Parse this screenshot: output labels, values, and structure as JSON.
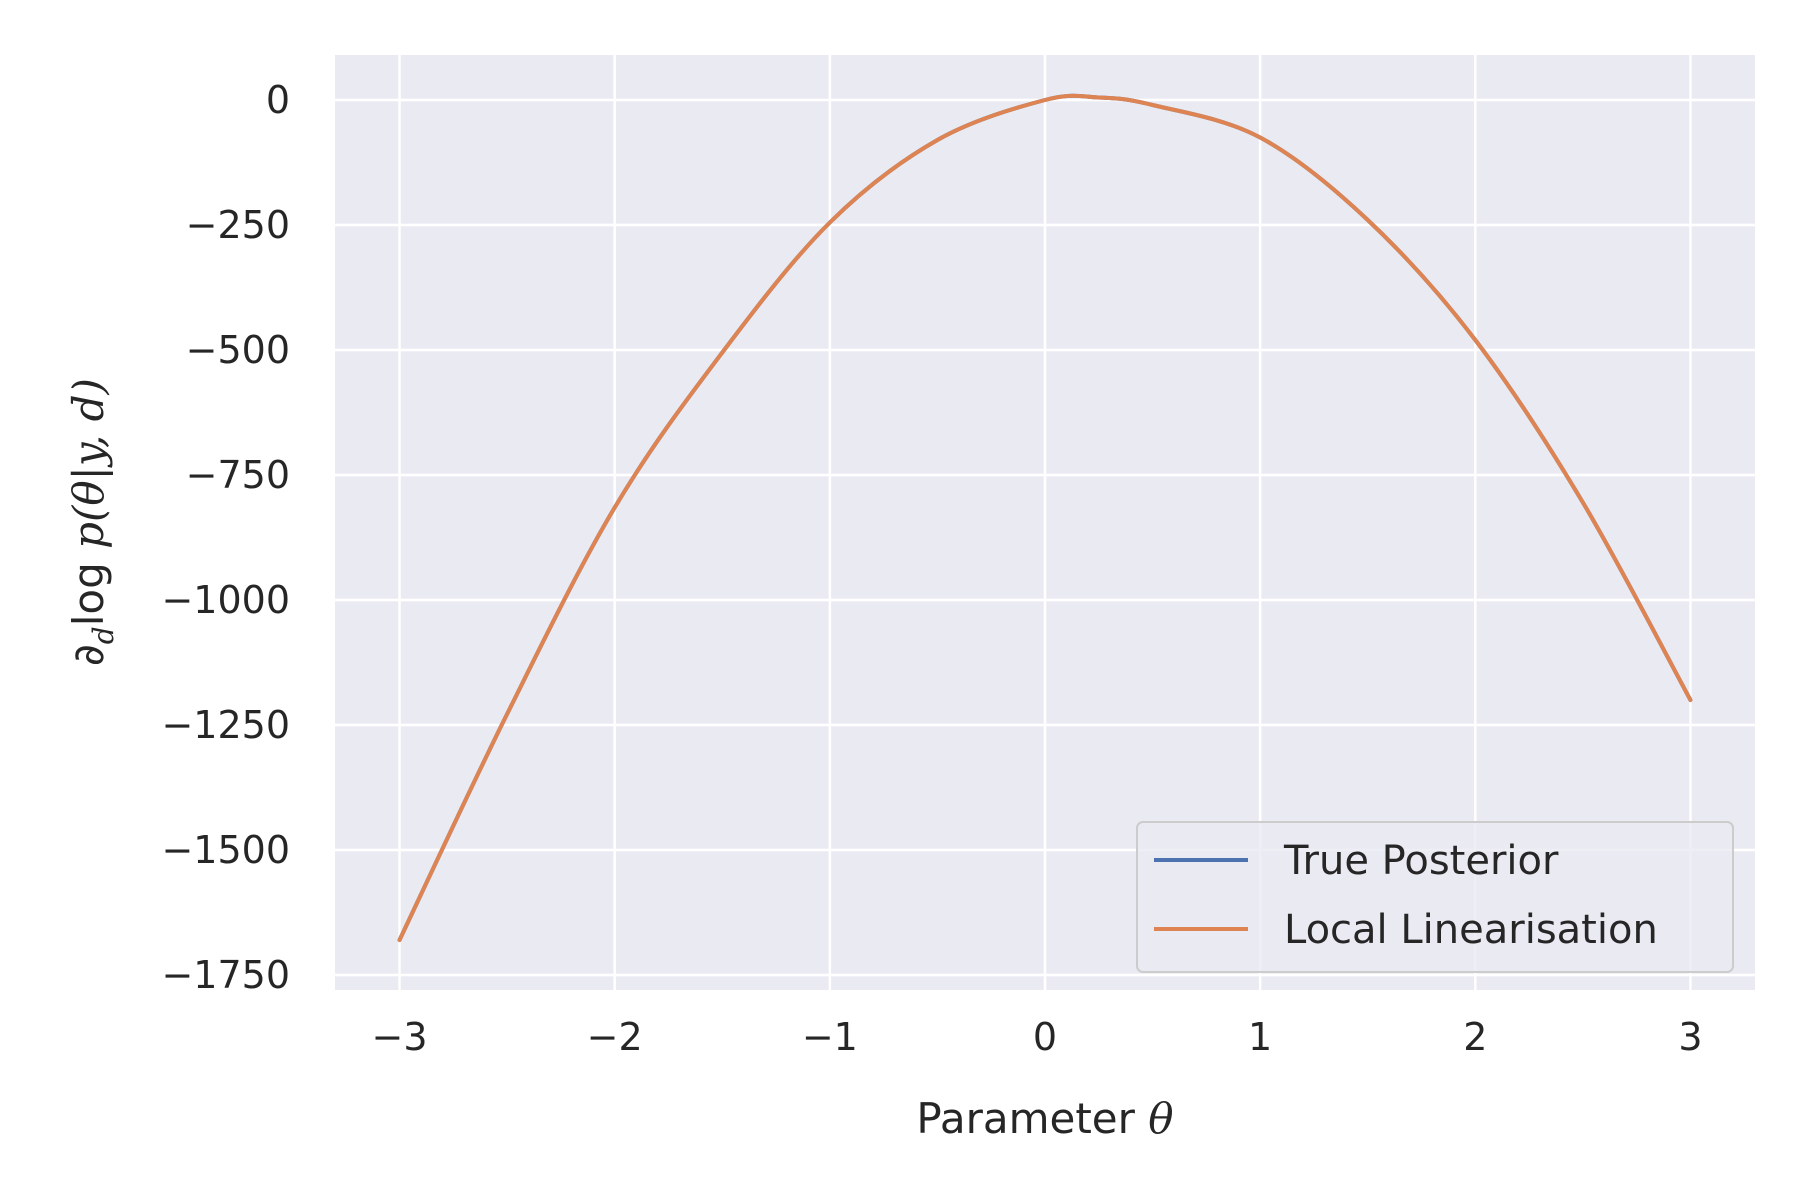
{
  "chart_data": {
    "type": "line",
    "title": "",
    "xlabel": "Parameter",
    "xlabel_symbol": "θ",
    "ylabel": "∂dlog p(θ|y, d)",
    "ylabel_parts": {
      "partial": "∂",
      "subscript": "d",
      "log": "log",
      "expr": "p(θ|y, d)"
    },
    "xlim": [
      -3.3,
      3.3
    ],
    "ylim": [
      -1780,
      90
    ],
    "x_ticks": [
      -3,
      -2,
      -1,
      0,
      1,
      2,
      3
    ],
    "x_tick_labels": [
      "−3",
      "−2",
      "−1",
      "0",
      "1",
      "2",
      "3"
    ],
    "y_ticks": [
      0,
      -250,
      -500,
      -750,
      -1000,
      -1250,
      -1500,
      -1750
    ],
    "y_tick_labels": [
      "0",
      "−250",
      "−500",
      "−750",
      "−1000",
      "−1250",
      "−1500",
      "−1750"
    ],
    "grid": true,
    "legend_position": "lower-right",
    "background_color": "#EAEAF2",
    "grid_color": "#FFFFFF",
    "series": [
      {
        "name": "True Posterior",
        "color": "#4C72B0",
        "x": [
          -3,
          -2.5,
          -2,
          -1.5,
          -1,
          -0.5,
          0,
          0.25,
          0.5,
          1,
          1.5,
          2,
          2.5,
          3
        ],
        "y": [
          -1680,
          -1228,
          -815,
          -505,
          -245,
          -80,
          0,
          5,
          -10,
          -75,
          -240,
          -480,
          -805,
          -1200
        ]
      },
      {
        "name": "Local Linearisation",
        "color": "#DD8452",
        "x": [
          -3,
          -2.5,
          -2,
          -1.5,
          -1,
          -0.5,
          0,
          0.25,
          0.5,
          1,
          1.5,
          2,
          2.5,
          3
        ],
        "y": [
          -1680,
          -1228,
          -815,
          -505,
          -245,
          -80,
          0,
          5,
          -10,
          -75,
          -240,
          -480,
          -805,
          -1200
        ]
      }
    ]
  }
}
